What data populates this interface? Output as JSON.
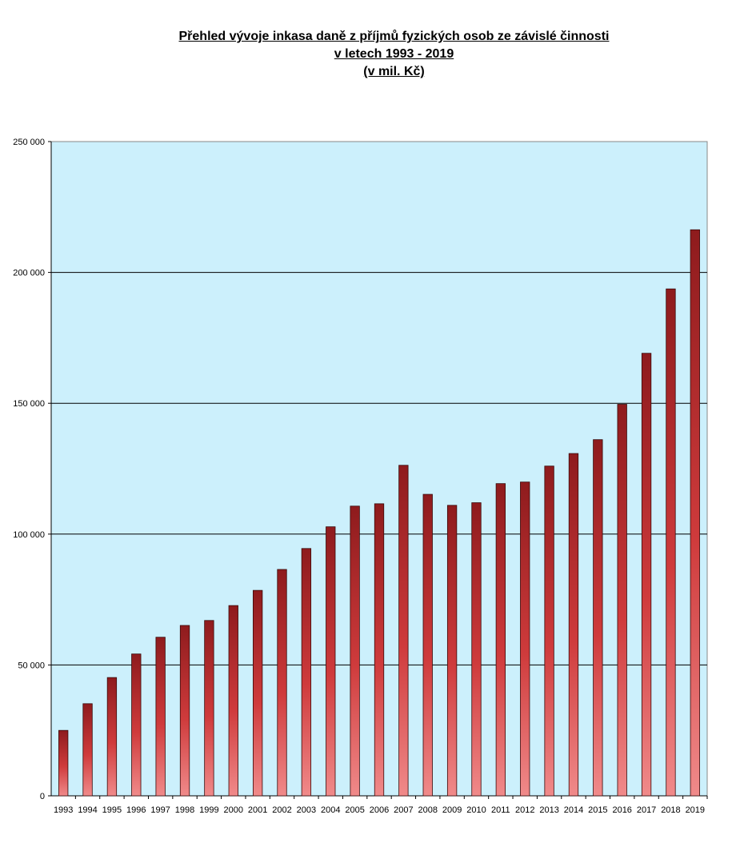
{
  "chart_data": {
    "type": "bar",
    "title": "Přehled vývoje inkasa daně z příjmů fyzických osob ze závislé činnosti",
    "subtitle_lines": [
      "v letech 1993 - 2019",
      "(v mil. Kč)"
    ],
    "xlabel": "",
    "ylabel": "",
    "categories": [
      "1993",
      "1994",
      "1995",
      "1996",
      "1997",
      "1998",
      "1999",
      "2000",
      "2001",
      "2002",
      "2003",
      "2004",
      "2005",
      "2006",
      "2007",
      "2008",
      "2009",
      "2010",
      "2011",
      "2012",
      "2013",
      "2014",
      "2015",
      "2016",
      "2017",
      "2018",
      "2019"
    ],
    "values": [
      25000,
      35200,
      45200,
      54200,
      60600,
      65100,
      67000,
      72700,
      78500,
      86500,
      94500,
      102800,
      110700,
      111600,
      126300,
      115200,
      111000,
      112000,
      119300,
      119900,
      126000,
      130800,
      136100,
      149600,
      169100,
      193700,
      216300
    ],
    "ylim": [
      0,
      250000
    ],
    "yticks": [
      0,
      50000,
      100000,
      150000,
      200000,
      250000
    ],
    "ytick_labels": [
      "0",
      "50 000",
      "100 000",
      "150 000",
      "200 000",
      "250 000"
    ],
    "grid": true,
    "legend": "none",
    "colors": {
      "plot_background": "#ccf0fc",
      "bar_dark": "#8e1b1d",
      "bar_mid": "#cf3b3c",
      "bar_light": "#f08a8a",
      "gridline": "#000000"
    }
  }
}
